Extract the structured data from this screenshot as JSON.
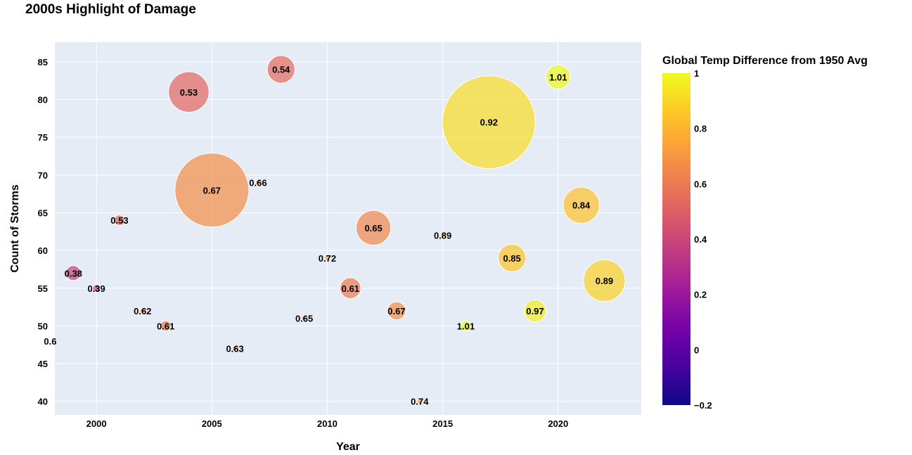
{
  "chart_data": {
    "type": "scatter",
    "title": "2000s Highlight of Damage",
    "xlabel": "Year",
    "ylabel": "Count of Storms",
    "xlim": [
      1998.2,
      2023.6
    ],
    "ylim": [
      38.2,
      87.6
    ],
    "x_ticks": [
      2000,
      2005,
      2010,
      2015,
      2020
    ],
    "y_ticks": [
      40,
      45,
      50,
      55,
      60,
      65,
      70,
      75,
      80,
      85
    ],
    "grid": true,
    "colorbar": {
      "title": "Global Temp Difference from 1950 Avg",
      "range": [
        -0.2,
        1.0
      ],
      "ticks": [
        -0.2,
        0,
        0.2,
        0.4,
        0.6,
        0.8,
        1
      ],
      "tick_labels": [
        "−0.2",
        "0",
        "0.2",
        "0.4",
        "0.6",
        "0.8",
        "1"
      ],
      "colorscale": "Plasma",
      "placement": "right"
    },
    "points": [
      {
        "year": 1998,
        "storms": 48,
        "temp": 0.61,
        "label": "0.6",
        "size": 2
      },
      {
        "year": 1999,
        "storms": 57,
        "temp": 0.38,
        "label": "0.38",
        "size": 4
      },
      {
        "year": 2000,
        "storms": 55,
        "temp": 0.39,
        "label": "0.39",
        "size": 1
      },
      {
        "year": 2001,
        "storms": 64,
        "temp": 0.53,
        "label": "0.53",
        "size": 2
      },
      {
        "year": 2002,
        "storms": 52,
        "temp": 0.62,
        "label": "0.62",
        "size": 0.5
      },
      {
        "year": 2003,
        "storms": 50,
        "temp": 0.61,
        "label": "0.61",
        "size": 2
      },
      {
        "year": 2004,
        "storms": 81,
        "temp": 0.53,
        "label": "0.53",
        "size": 30
      },
      {
        "year": 2005,
        "storms": 68,
        "temp": 0.67,
        "label": "0.67",
        "size": 100
      },
      {
        "year": 2006,
        "storms": 47,
        "temp": 0.63,
        "label": "0.63",
        "size": 0.5
      },
      {
        "year": 2007,
        "storms": 69,
        "temp": 0.66,
        "label": "0.66",
        "size": 0.5
      },
      {
        "year": 2008,
        "storms": 84,
        "temp": 0.54,
        "label": "0.54",
        "size": 14
      },
      {
        "year": 2009,
        "storms": 51,
        "temp": 0.65,
        "label": "0.65",
        "size": 0.5
      },
      {
        "year": 2010,
        "storms": 59,
        "temp": 0.72,
        "label": "0.72",
        "size": 0.5
      },
      {
        "year": 2011,
        "storms": 55,
        "temp": 0.61,
        "label": "0.61",
        "size": 8
      },
      {
        "year": 2012,
        "storms": 63,
        "temp": 0.65,
        "label": "0.65",
        "size": 22
      },
      {
        "year": 2013,
        "storms": 52,
        "temp": 0.67,
        "label": "0.67",
        "size": 6
      },
      {
        "year": 2014,
        "storms": 40,
        "temp": 0.74,
        "label": "0.74",
        "size": 0.5
      },
      {
        "year": 2015,
        "storms": 62,
        "temp": 0.89,
        "label": "0.89",
        "size": 0.5
      },
      {
        "year": 2016,
        "storms": 50,
        "temp": 1.01,
        "label": "1.01",
        "size": 2
      },
      {
        "year": 2017,
        "storms": 77,
        "temp": 0.92,
        "label": "0.92",
        "size": 158
      },
      {
        "year": 2018,
        "storms": 59,
        "temp": 0.85,
        "label": "0.85",
        "size": 14
      },
      {
        "year": 2019,
        "storms": 52,
        "temp": 0.97,
        "label": "0.97",
        "size": 9
      },
      {
        "year": 2020,
        "storms": 83,
        "temp": 1.01,
        "label": "1.01",
        "size": 11
      },
      {
        "year": 2021,
        "storms": 66,
        "temp": 0.84,
        "label": "0.84",
        "size": 24
      },
      {
        "year": 2022,
        "storms": 56,
        "temp": 0.89,
        "label": "0.89",
        "size": 32
      }
    ]
  }
}
